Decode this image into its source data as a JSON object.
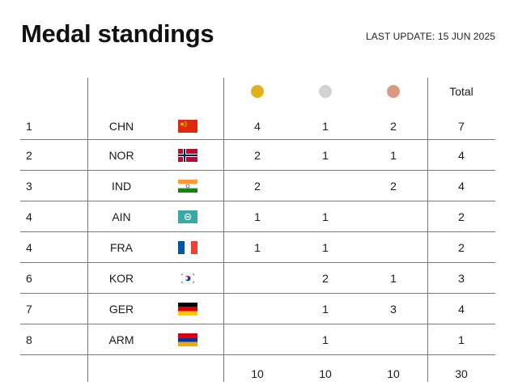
{
  "header": {
    "title": "Medal standings",
    "last_update": "LAST UPDATE: 15 JUN 2025"
  },
  "columns": {
    "total_label": "Total",
    "gold_color": "#e0b21a",
    "silver_color": "#d2d2d2",
    "bronze_color": "#d99a84"
  },
  "rows": [
    {
      "rank": "1",
      "noc": "CHN",
      "flag": "china-flag-icon",
      "gold": "4",
      "silver": "1",
      "bronze": "2",
      "total": "7"
    },
    {
      "rank": "2",
      "noc": "NOR",
      "flag": "norway-flag-icon",
      "gold": "2",
      "silver": "1",
      "bronze": "1",
      "total": "4"
    },
    {
      "rank": "3",
      "noc": "IND",
      "flag": "india-flag-icon",
      "gold": "2",
      "silver": "",
      "bronze": "2",
      "total": "4"
    },
    {
      "rank": "4",
      "noc": "AIN",
      "flag": "ain-flag-icon",
      "gold": "1",
      "silver": "1",
      "bronze": "",
      "total": "2"
    },
    {
      "rank": "4",
      "noc": "FRA",
      "flag": "france-flag-icon",
      "gold": "1",
      "silver": "1",
      "bronze": "",
      "total": "2"
    },
    {
      "rank": "6",
      "noc": "KOR",
      "flag": "korea-flag-icon",
      "gold": "",
      "silver": "2",
      "bronze": "1",
      "total": "3"
    },
    {
      "rank": "7",
      "noc": "GER",
      "flag": "germany-flag-icon",
      "gold": "",
      "silver": "1",
      "bronze": "3",
      "total": "4"
    },
    {
      "rank": "8",
      "noc": "ARM",
      "flag": "armenia-flag-icon",
      "gold": "",
      "silver": "1",
      "bronze": "",
      "total": "1"
    }
  ],
  "totals": {
    "gold": "10",
    "silver": "10",
    "bronze": "10",
    "total": "30"
  }
}
